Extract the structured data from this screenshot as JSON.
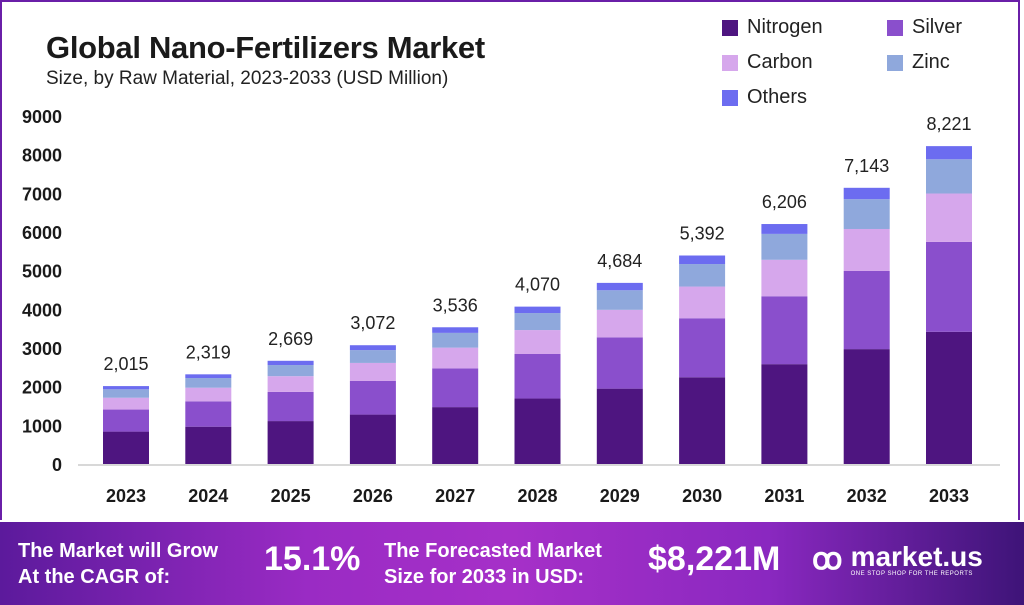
{
  "chart_data": {
    "type": "bar",
    "stacked": true,
    "title": "Global Nano-Fertilizers Market",
    "subtitle": "Size, by Raw Material, 2023-2033 (USD Million)",
    "xlabel": "",
    "ylabel": "",
    "ylim": [
      0,
      9000
    ],
    "yticks": [
      "0",
      "1000",
      "2000",
      "3000",
      "4000",
      "5000",
      "6000",
      "7000",
      "8000",
      "9000"
    ],
    "categories": [
      "2023",
      "2024",
      "2025",
      "2026",
      "2027",
      "2028",
      "2029",
      "2030",
      "2031",
      "2032",
      "2033"
    ],
    "totals": [
      2015,
      2319,
      2669,
      3072,
      3536,
      4070,
      4684,
      5392,
      6206,
      7143,
      8221
    ],
    "total_labels": [
      "2,015",
      "2,319",
      "2,669",
      "3,072",
      "3,536",
      "4,070",
      "4,684",
      "5,392",
      "6,206",
      "7,143",
      "8,221"
    ],
    "series": [
      {
        "name": "Nitrogen",
        "color": "#4e1580",
        "values": [
          838,
          965,
          1110,
          1278,
          1471,
          1693,
          1949,
          2243,
          2582,
          2971,
          3419
        ]
      },
      {
        "name": "Silver",
        "color": "#8a4fcc",
        "values": [
          570,
          656,
          755,
          869,
          1001,
          1152,
          1326,
          1526,
          1756,
          2021,
          2325
        ]
      },
      {
        "name": "Carbon",
        "color": "#d6a7ec",
        "values": [
          306,
          352,
          406,
          467,
          537,
          619,
          712,
          820,
          943,
          1086,
          1251
        ]
      },
      {
        "name": "Zinc",
        "color": "#8fa8dc",
        "values": [
          218,
          250,
          288,
          332,
          382,
          440,
          506,
          582,
          670,
          771,
          886
        ]
      },
      {
        "name": "Others",
        "color": "#6c6cf0",
        "values": [
          83,
          96,
          110,
          126,
          145,
          166,
          191,
          221,
          255,
          294,
          340
        ]
      }
    ],
    "legend_position": "top-right",
    "grid": false
  },
  "footer": {
    "cagr_label_1": "The Market will Grow",
    "cagr_label_2": "At the CAGR of:",
    "cagr_value": "15.1%",
    "forecast_label_1": "The Forecasted Market",
    "forecast_label_2": "Size for 2033 in USD:",
    "forecast_value": "$8,221M",
    "brand": "market.us",
    "brand_tagline": "ONE STOP SHOP FOR THE REPORTS"
  }
}
